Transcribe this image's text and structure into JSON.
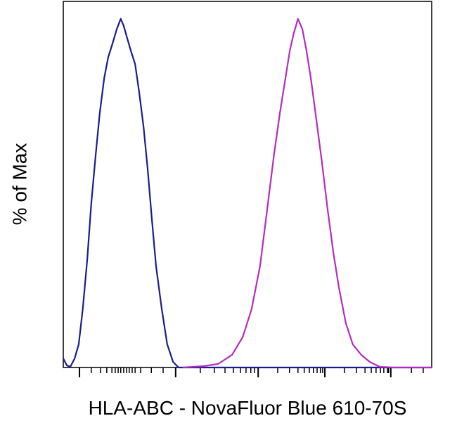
{
  "chart_data": {
    "type": "line",
    "x_label": "HLA-ABC - NovaFluor Blue 610-70S",
    "y_label": "% of Max",
    "xlim": [
      0,
      1000
    ],
    "ylim": [
      0,
      105
    ],
    "xticks": [
      44,
      305,
      529,
      710,
      889
    ],
    "xminorticks": [
      76,
      101,
      118,
      132,
      141,
      149,
      156,
      164,
      172,
      179,
      187,
      195,
      210,
      239,
      271,
      372,
      410,
      439,
      462,
      481,
      496,
      509,
      519,
      582,
      614,
      637,
      654,
      668,
      679,
      689,
      698,
      704,
      763,
      796,
      819,
      836,
      849,
      861,
      870,
      880,
      883,
      945,
      977
    ],
    "series": [
      {
        "color": "#1c1c8e",
        "x": [
          0,
          9.5,
          19,
          31,
          42,
          53,
          65,
          76,
          88,
          99,
          111,
          122,
          134,
          145,
          156,
          164,
          172,
          183,
          195,
          206,
          218,
          229,
          240,
          252,
          267,
          282,
          298,
          313,
          1000
        ],
        "values": [
          2.6,
          0.6,
          0.2,
          2.6,
          6.7,
          16.9,
          31,
          47,
          61,
          73,
          83,
          89,
          93,
          97,
          100,
          98,
          95,
          91,
          87,
          79,
          69,
          57,
          43,
          29,
          17,
          6.7,
          1.6,
          0,
          0
        ]
      },
      {
        "color": "#b32dbf",
        "x": [
          324,
          382,
          420,
          458,
          487,
          511,
          534,
          553,
          572,
          588,
          603,
          615,
          626,
          637,
          649,
          660,
          672,
          687,
          702,
          718,
          733,
          748,
          767,
          786,
          809,
          832,
          859,
          897,
          1000
        ],
        "values": [
          0,
          0.4,
          1,
          3.6,
          8.7,
          16.7,
          29,
          45,
          61,
          73,
          83,
          91,
          96,
          100,
          97,
          91,
          83,
          71,
          59,
          45,
          33,
          23,
          12.7,
          6.6,
          3.6,
          1.6,
          0.2,
          0,
          0
        ]
      }
    ]
  }
}
